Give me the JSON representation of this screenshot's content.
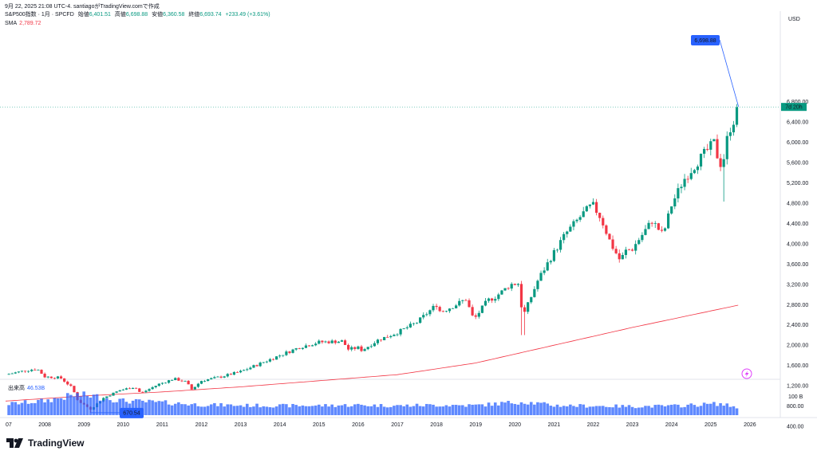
{
  "header": {
    "line1": "9月 22, 2025 21:08 UTC-4.  santiagoがTradingView.comで作成",
    "symbol": "S&P500指数 · 1月 · SPCFD",
    "open_label": "始値",
    "open": "6,401.51",
    "high_label": "高値",
    "high": "6,698.88",
    "low_label": "安値",
    "low": "6,360.58",
    "close_label": "終値",
    "close": "6,693.74",
    "change": "+233.49 (+3.61%)",
    "sma_label": "SMA",
    "sma_value": "2,789.72"
  },
  "price_axis": {
    "currency": "USD",
    "ticks": [
      400,
      800,
      1200,
      1600,
      2000,
      2400,
      2800,
      3200,
      3600,
      4000,
      4400,
      4800,
      5200,
      5600,
      6000,
      6400,
      6800
    ],
    "tick_labels": [
      "400.00",
      "800.00",
      "1,200.00",
      "1,600.00",
      "2,000.00",
      "2,400.00",
      "2,800.00",
      "3,200.00",
      "3,600.00",
      "4,000.00",
      "4,400.00",
      "4,800.00",
      "5,200.00",
      "5,600.00",
      "6,000.00",
      "6,400.00",
      "6,800.00"
    ],
    "countdown": "7d 20h"
  },
  "time_axis": {
    "labels": [
      "07",
      "2008",
      "2009",
      "2010",
      "2011",
      "2012",
      "2013",
      "2014",
      "2015",
      "2016",
      "2017",
      "2018",
      "2019",
      "2020",
      "2021",
      "2022",
      "2023",
      "2024",
      "2025",
      "2026"
    ]
  },
  "volume": {
    "label": "出来高",
    "value": "46.53B",
    "axis_label": "100 B"
  },
  "brand": {
    "name": "TradingView"
  },
  "colors": {
    "up": "#089981",
    "down": "#f23645",
    "sma": "#f23645",
    "volume": "#2962ff",
    "callout": "#2962ff"
  },
  "chart_data": {
    "type": "candlestick",
    "interval": "1 month",
    "price_range": [
      0,
      7300
    ],
    "annotations": {
      "high_callout": {
        "label": "6,698.88",
        "value": 6698.88,
        "x": 2025.71
      },
      "low_callout": {
        "label": "670.54",
        "value": 670.54,
        "x": 2009.17
      }
    },
    "close_path": [
      [
        2007.0,
        1420
      ],
      [
        2007.5,
        1500
      ],
      [
        2007.8,
        1540
      ],
      [
        2008.0,
        1380
      ],
      [
        2008.4,
        1360
      ],
      [
        2008.7,
        1160
      ],
      [
        2008.85,
        900
      ],
      [
        2009.0,
        830
      ],
      [
        2009.17,
        740
      ],
      [
        2009.5,
        960
      ],
      [
        2009.9,
        1110
      ],
      [
        2010.3,
        1180
      ],
      [
        2010.45,
        1050
      ],
      [
        2010.9,
        1230
      ],
      [
        2011.3,
        1340
      ],
      [
        2011.6,
        1280
      ],
      [
        2011.75,
        1130
      ],
      [
        2012.0,
        1300
      ],
      [
        2012.5,
        1380
      ],
      [
        2013.0,
        1480
      ],
      [
        2013.5,
        1640
      ],
      [
        2014.0,
        1800
      ],
      [
        2014.5,
        1960
      ],
      [
        2015.0,
        2060
      ],
      [
        2015.6,
        2080
      ],
      [
        2015.75,
        1920
      ],
      [
        2016.0,
        1950
      ],
      [
        2016.1,
        1900
      ],
      [
        2016.5,
        2100
      ],
      [
        2017.0,
        2250
      ],
      [
        2017.5,
        2450
      ],
      [
        2018.0,
        2800
      ],
      [
        2018.1,
        2650
      ],
      [
        2018.5,
        2800
      ],
      [
        2018.75,
        2910
      ],
      [
        2018.95,
        2500
      ],
      [
        2019.3,
        2880
      ],
      [
        2019.5,
        2950
      ],
      [
        2019.9,
        3200
      ],
      [
        2020.1,
        3220
      ],
      [
        2020.2,
        2550
      ],
      [
        2020.6,
        3300
      ],
      [
        2020.9,
        3700
      ],
      [
        2021.3,
        4200
      ],
      [
        2021.75,
        4600
      ],
      [
        2021.98,
        4770
      ],
      [
        2022.2,
        4500
      ],
      [
        2022.45,
        4000
      ],
      [
        2022.7,
        3650
      ],
      [
        2022.8,
        3850
      ],
      [
        2023.0,
        3900
      ],
      [
        2023.5,
        4450
      ],
      [
        2023.75,
        4200
      ],
      [
        2023.83,
        4300
      ],
      [
        2024.0,
        4760
      ],
      [
        2024.3,
        5250
      ],
      [
        2024.7,
        5650
      ],
      [
        2024.98,
        5900
      ],
      [
        2025.1,
        6000
      ],
      [
        2025.2,
        5600
      ],
      [
        2025.3,
        5550
      ],
      [
        2025.45,
        6200
      ],
      [
        2025.6,
        6450
      ],
      [
        2025.71,
        6694
      ]
    ],
    "sma_path": [
      [
        2007.0,
        900
      ],
      [
        2009.0,
        1000
      ],
      [
        2011.0,
        1080
      ],
      [
        2013.0,
        1180
      ],
      [
        2015.0,
        1300
      ],
      [
        2017.0,
        1420
      ],
      [
        2019.0,
        1650
      ],
      [
        2021.0,
        2000
      ],
      [
        2023.0,
        2350
      ],
      [
        2025.71,
        2790
      ]
    ],
    "volume_range": [
      0,
      180
    ],
    "volume_path": [
      [
        2007.0,
        65
      ],
      [
        2008.0,
        85
      ],
      [
        2008.8,
        120
      ],
      [
        2009.2,
        115
      ],
      [
        2010.0,
        85
      ],
      [
        2011.0,
        75
      ],
      [
        2012.0,
        62
      ],
      [
        2013.0,
        58
      ],
      [
        2014.0,
        56
      ],
      [
        2015.0,
        57
      ],
      [
        2016.0,
        60
      ],
      [
        2017.0,
        56
      ],
      [
        2018.0,
        60
      ],
      [
        2019.0,
        58
      ],
      [
        2020.2,
        80
      ],
      [
        2021.0,
        58
      ],
      [
        2022.0,
        55
      ],
      [
        2023.0,
        52
      ],
      [
        2024.0,
        54
      ],
      [
        2025.2,
        68
      ],
      [
        2025.71,
        46.53
      ]
    ]
  }
}
